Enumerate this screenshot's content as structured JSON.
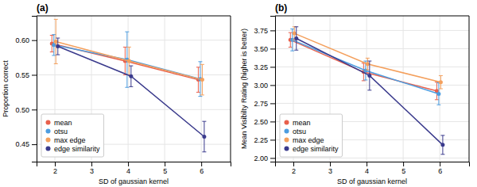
{
  "chart_data": [
    {
      "type": "line",
      "title": "(a)",
      "xlabel": "SD of gaussian kernel",
      "ylabel": "Proportion correct",
      "x": [
        2,
        4,
        6
      ],
      "series": [
        {
          "name": "mean",
          "color": "#e8604c",
          "values": [
            0.595,
            0.57,
            0.543
          ],
          "yerr": [
            0.012,
            0.02,
            0.018
          ]
        },
        {
          "name": "otsu",
          "color": "#4d9de0",
          "values": [
            0.593,
            0.572,
            0.544
          ],
          "yerr": [
            0.015,
            0.04,
            0.025
          ]
        },
        {
          "name": "max edge",
          "color": "#f4a05d",
          "values": [
            0.598,
            0.57,
            0.543
          ],
          "yerr": [
            0.032,
            0.02,
            0.022
          ]
        },
        {
          "name": "edge similarity",
          "color": "#3a3a8c",
          "values": [
            0.591,
            0.548,
            0.461
          ],
          "yerr": [
            0.012,
            0.015,
            0.022
          ]
        }
      ],
      "xlim": [
        1.5,
        6.8
      ],
      "ylim": [
        0.425,
        0.635
      ],
      "xticks": [
        2,
        3,
        4,
        5,
        6
      ],
      "yticks": [
        0.45,
        {
          "value": 0.5,
          "label": "0.50"
        },
        0.55,
        {
          "value": 0.6,
          "label": "0.60"
        }
      ],
      "grid": true,
      "legend": "lower left",
      "marker": "circle"
    },
    {
      "type": "line",
      "title": "(b)",
      "xlabel": "SD of gaussian kernel",
      "ylabel": "Mean Visibilty Rating (higher is better)",
      "x": [
        2,
        4,
        6
      ],
      "series": [
        {
          "name": "mean",
          "color": "#e8604c",
          "values": [
            3.62,
            3.18,
            2.92
          ],
          "yerr": [
            0.1,
            0.12,
            0.12
          ]
        },
        {
          "name": "otsu",
          "color": "#4d9de0",
          "values": [
            3.62,
            3.2,
            2.88
          ],
          "yerr": [
            0.15,
            0.13,
            0.15
          ]
        },
        {
          "name": "max edge",
          "color": "#f4a05d",
          "values": [
            3.71,
            3.29,
            3.04
          ],
          "yerr": [
            0.09,
            0.08,
            0.09
          ]
        },
        {
          "name": "edge similarity",
          "color": "#3a3a8c",
          "values": [
            3.64,
            3.13,
            2.18
          ],
          "yerr": [
            0.16,
            0.2,
            0.13
          ]
        }
      ],
      "xlim": [
        1.5,
        6.8
      ],
      "ylim": [
        1.95,
        3.95
      ],
      "xticks": [
        2,
        3,
        4,
        5,
        6
      ],
      "yticks": [
        {
          "value": 2.0,
          "label": "2.00"
        },
        2.25,
        {
          "value": 2.5,
          "label": "2.50"
        },
        2.75,
        {
          "value": 3.0,
          "label": "3.00"
        },
        3.25,
        {
          "value": 3.5,
          "label": "3.50"
        },
        3.75
      ],
      "grid": true,
      "legend": "lower left",
      "marker": "circle"
    }
  ]
}
